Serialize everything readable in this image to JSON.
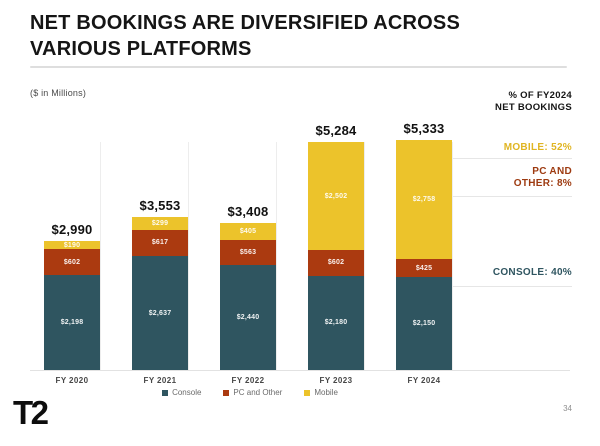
{
  "header": {
    "title_line1": "NET BOOKINGS ARE DIVERSIFIED ACROSS",
    "title_line2": "VARIOUS PLATFORMS",
    "units_label": "($ in Millions)"
  },
  "right_panel": {
    "header_line1": "% OF FY2024",
    "header_line2": "NET BOOKINGS",
    "mobile": {
      "label": "MOBILE: 52%",
      "color": "#e0b522"
    },
    "pc": {
      "line1": "PC AND",
      "line2": "OTHER: 8%",
      "color": "#9d3a10"
    },
    "console": {
      "label": "CONSOLE: 40%",
      "color": "#2f5560"
    }
  },
  "chart_data": {
    "type": "bar",
    "stacked": true,
    "title": "Net bookings by platform, $ in Millions",
    "categories": [
      "FY 2020",
      "FY 2021",
      "FY 2022",
      "FY 2023",
      "FY 2024"
    ],
    "series": [
      {
        "name": "Console",
        "color": "#2f5560",
        "values": [
          2198,
          2637,
          2440,
          2180,
          2150
        ],
        "labels": [
          "$2,198",
          "$2,637",
          "$2,440",
          "$2,180",
          "$2,150"
        ]
      },
      {
        "name": "PC and Other",
        "color": "#ab3a10",
        "values": [
          602,
          617,
          563,
          602,
          425
        ],
        "labels": [
          "$602",
          "$617",
          "$563",
          "$602",
          "$425"
        ]
      },
      {
        "name": "Mobile",
        "color": "#ecc32b",
        "values": [
          190,
          299,
          405,
          2502,
          2758
        ],
        "labels": [
          "$190",
          "$299",
          "$405",
          "$2,502",
          "$2,758"
        ]
      }
    ],
    "totals": [
      2990,
      3553,
      3408,
      5284,
      5333
    ],
    "total_labels": [
      "$2,990",
      "$3,553",
      "$3,408",
      "$5,284",
      "$5,333"
    ],
    "ylim": [
      0,
      5600
    ],
    "grid": false,
    "legend_position": "bottom"
  },
  "legend": {
    "items": [
      {
        "label": "Console",
        "color": "#2f5560"
      },
      {
        "label": "PC and Other",
        "color": "#ab3a10"
      },
      {
        "label": "Mobile",
        "color": "#ecc32b"
      }
    ]
  },
  "footer": {
    "logo_text": "T2",
    "page_number": "34"
  }
}
